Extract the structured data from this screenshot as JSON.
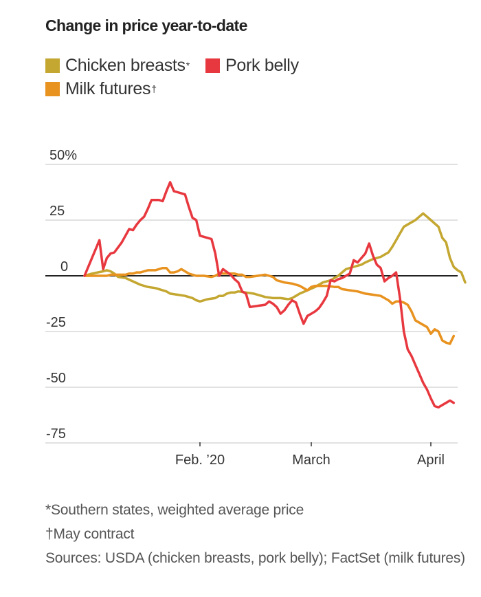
{
  "chart_data": {
    "type": "line",
    "title": "Change in price year-to-date",
    "xlabel": "",
    "ylabel": "",
    "y_unit": "%",
    "ylim": [
      -75,
      50
    ],
    "xlim_days_since_jan1": [
      0,
      97
    ],
    "grid": true,
    "legend_position": "top-left",
    "y_ticks": [
      {
        "value": 50,
        "label": "50%"
      },
      {
        "value": 25,
        "label": "25"
      },
      {
        "value": 0,
        "label": "0"
      },
      {
        "value": -25,
        "label": "-25"
      },
      {
        "value": -50,
        "label": "-50"
      },
      {
        "value": -75,
        "label": "-75"
      }
    ],
    "x_ticks": [
      {
        "day": 31,
        "label": "Feb. ’20"
      },
      {
        "day": 60,
        "label": "March"
      },
      {
        "day": 91,
        "label": "April"
      }
    ],
    "series": [
      {
        "name": "Chicken breasts",
        "marker": "*",
        "color": "#c4a731",
        "points": [
          [
            0,
            0
          ],
          [
            2,
            1
          ],
          [
            5,
            2
          ],
          [
            6,
            2.5
          ],
          [
            7,
            2
          ],
          [
            8,
            1
          ],
          [
            9,
            -0.5
          ],
          [
            11,
            -1
          ],
          [
            13,
            -2.5
          ],
          [
            15,
            -4
          ],
          [
            17,
            -5
          ],
          [
            19,
            -5.5
          ],
          [
            21,
            -6.5
          ],
          [
            22,
            -7
          ],
          [
            23,
            -8
          ],
          [
            25,
            -8.5
          ],
          [
            27,
            -9
          ],
          [
            29,
            -10
          ],
          [
            30,
            -11
          ],
          [
            31,
            -11.5
          ],
          [
            33,
            -10.5
          ],
          [
            35,
            -10
          ],
          [
            36,
            -9
          ],
          [
            37,
            -9
          ],
          [
            38,
            -8
          ],
          [
            39,
            -7.5
          ],
          [
            40,
            -7.5
          ],
          [
            41,
            -7
          ],
          [
            43,
            -7.5
          ],
          [
            45,
            -8
          ],
          [
            46,
            -8.5
          ],
          [
            48,
            -9.5
          ],
          [
            50,
            -10
          ],
          [
            52,
            -10
          ],
          [
            54,
            -10.5
          ],
          [
            55,
            -10
          ],
          [
            56,
            -9
          ],
          [
            57,
            -8
          ],
          [
            59,
            -6.5
          ],
          [
            61,
            -5
          ],
          [
            63,
            -3
          ],
          [
            65,
            -2
          ],
          [
            66,
            -1
          ],
          [
            67,
            0
          ],
          [
            68,
            1.5
          ],
          [
            69,
            3
          ],
          [
            71,
            4
          ],
          [
            73,
            5
          ],
          [
            74,
            6
          ],
          [
            76,
            7.5
          ],
          [
            78,
            8.5
          ],
          [
            79,
            9.5
          ],
          [
            80,
            10.5
          ],
          [
            81,
            13
          ],
          [
            82,
            16
          ],
          [
            83,
            19
          ],
          [
            84,
            22
          ],
          [
            86,
            24
          ],
          [
            87,
            25
          ],
          [
            88,
            26.5
          ],
          [
            89,
            28
          ],
          [
            90,
            26.5
          ],
          [
            91,
            25
          ],
          [
            92,
            23.5
          ],
          [
            93,
            22
          ],
          [
            94,
            17
          ],
          [
            95,
            15
          ],
          [
            96,
            8
          ],
          [
            97,
            4
          ],
          [
            98,
            2.5
          ],
          [
            99,
            1.5
          ],
          [
            100,
            -3
          ]
        ]
      },
      {
        "name": "Pork belly",
        "marker": "",
        "color": "#e8383f",
        "points": [
          [
            0,
            0
          ],
          [
            4,
            16
          ],
          [
            5,
            3
          ],
          [
            6,
            8
          ],
          [
            7,
            10
          ],
          [
            8,
            10.5
          ],
          [
            10,
            15
          ],
          [
            11,
            18
          ],
          [
            12,
            21
          ],
          [
            13,
            20.5
          ],
          [
            14,
            23
          ],
          [
            15,
            25
          ],
          [
            16,
            26.5
          ],
          [
            17,
            30
          ],
          [
            18,
            34
          ],
          [
            20,
            34
          ],
          [
            21,
            33.5
          ],
          [
            22,
            38
          ],
          [
            23,
            42
          ],
          [
            24,
            38
          ],
          [
            25,
            37.5
          ],
          [
            26,
            37
          ],
          [
            27,
            36.5
          ],
          [
            28,
            31
          ],
          [
            29,
            26
          ],
          [
            30,
            25
          ],
          [
            31,
            18
          ],
          [
            33,
            17
          ],
          [
            34,
            16.5
          ],
          [
            35,
            10
          ],
          [
            36,
            0
          ],
          [
            37,
            3
          ],
          [
            39,
            0.5
          ],
          [
            40,
            -1.5
          ],
          [
            41,
            -3
          ],
          [
            42,
            -7
          ],
          [
            43,
            -8
          ],
          [
            44,
            -14
          ],
          [
            46,
            -13.5
          ],
          [
            48,
            -13
          ],
          [
            49,
            -11.5
          ],
          [
            50,
            -12.5
          ],
          [
            51,
            -14
          ],
          [
            52,
            -17
          ],
          [
            53,
            -15.5
          ],
          [
            54,
            -13
          ],
          [
            55,
            -11
          ],
          [
            56,
            -12
          ],
          [
            57,
            -17
          ],
          [
            58,
            -21.5
          ],
          [
            59,
            -18
          ],
          [
            60,
            -17
          ],
          [
            61,
            -16
          ],
          [
            62,
            -14.5
          ],
          [
            63,
            -12
          ],
          [
            64,
            -9
          ],
          [
            65,
            -2
          ],
          [
            66,
            -2.5
          ],
          [
            67,
            -1.5
          ],
          [
            68,
            -1
          ],
          [
            69,
            0
          ],
          [
            70,
            1
          ],
          [
            71,
            7
          ],
          [
            72,
            6
          ],
          [
            73,
            8
          ],
          [
            74,
            10
          ],
          [
            75,
            14.5
          ],
          [
            76,
            9
          ],
          [
            77,
            5
          ],
          [
            78,
            3.5
          ],
          [
            79,
            -2.5
          ],
          [
            80,
            -1
          ],
          [
            81,
            0
          ],
          [
            82,
            1.5
          ],
          [
            83,
            -10
          ],
          [
            84,
            -25
          ],
          [
            85,
            -33
          ],
          [
            86,
            -36
          ],
          [
            87,
            -40
          ],
          [
            88,
            -44
          ],
          [
            89,
            -48
          ],
          [
            90,
            -51
          ],
          [
            91,
            -55
          ],
          [
            92,
            -58.5
          ],
          [
            93,
            -59
          ],
          [
            94,
            -58
          ],
          [
            95,
            -57
          ],
          [
            96,
            -56
          ],
          [
            97,
            -57
          ]
        ]
      },
      {
        "name": "Milk futures",
        "marker": "†",
        "color": "#e8921f",
        "points": [
          [
            0,
            0
          ],
          [
            2,
            0
          ],
          [
            4,
            0
          ],
          [
            5,
            0
          ],
          [
            6,
            0
          ],
          [
            7,
            0.5
          ],
          [
            9,
            0.5
          ],
          [
            11,
            0.5
          ],
          [
            12,
            1
          ],
          [
            13,
            1
          ],
          [
            14,
            1.5
          ],
          [
            15,
            1.5
          ],
          [
            16,
            2
          ],
          [
            17,
            2.5
          ],
          [
            19,
            2.5
          ],
          [
            20,
            3
          ],
          [
            21,
            3.5
          ],
          [
            22,
            3.5
          ],
          [
            23,
            1.5
          ],
          [
            24,
            1.5
          ],
          [
            25,
            2
          ],
          [
            26,
            3
          ],
          [
            27,
            2
          ],
          [
            28,
            1
          ],
          [
            29,
            0.5
          ],
          [
            30,
            0
          ],
          [
            32,
            0
          ],
          [
            34,
            -0.5
          ],
          [
            35,
            0
          ],
          [
            36,
            1
          ],
          [
            38,
            1
          ],
          [
            40,
            1
          ],
          [
            41,
            0.5
          ],
          [
            42,
            0.5
          ],
          [
            43,
            -0.5
          ],
          [
            44,
            -0.5
          ],
          [
            46,
            0
          ],
          [
            48,
            0.5
          ],
          [
            49,
            0
          ],
          [
            50,
            -0.5
          ],
          [
            51,
            -2
          ],
          [
            53,
            -3
          ],
          [
            55,
            -3.5
          ],
          [
            57,
            -4.5
          ],
          [
            58,
            -5.5
          ],
          [
            59,
            -6.5
          ],
          [
            60,
            -5
          ],
          [
            61,
            -4.5
          ],
          [
            62,
            -4.5
          ],
          [
            64,
            -4.5
          ],
          [
            66,
            -5
          ],
          [
            67,
            -5
          ],
          [
            68,
            -6
          ],
          [
            70,
            -6.5
          ],
          [
            72,
            -7
          ],
          [
            74,
            -8
          ],
          [
            76,
            -8.5
          ],
          [
            78,
            -9
          ],
          [
            79,
            -10
          ],
          [
            80,
            -11
          ],
          [
            81,
            -12.5
          ],
          [
            82,
            -11.5
          ],
          [
            83,
            -11.5
          ],
          [
            84,
            -12
          ],
          [
            85,
            -13
          ],
          [
            86,
            -16
          ],
          [
            87,
            -20
          ],
          [
            89,
            -22
          ],
          [
            90,
            -23
          ],
          [
            91,
            -26
          ],
          [
            92,
            -24
          ],
          [
            93,
            -25
          ],
          [
            94,
            -29
          ],
          [
            95,
            -30
          ],
          [
            96,
            -30.5
          ],
          [
            97,
            -27
          ]
        ]
      }
    ]
  },
  "legend": [
    {
      "label": "Chicken breasts",
      "marker": "*",
      "color": "#c4a731"
    },
    {
      "label": "Pork belly",
      "marker": "",
      "color": "#e8383f"
    },
    {
      "label": "Milk futures",
      "marker": "†",
      "color": "#e8921f"
    }
  ],
  "footnotes": {
    "note1": "*Southern states, weighted average price",
    "note2": "†May contract",
    "sources": "Sources: USDA (chicken breasts, pork belly); FactSet (milk futures)"
  }
}
